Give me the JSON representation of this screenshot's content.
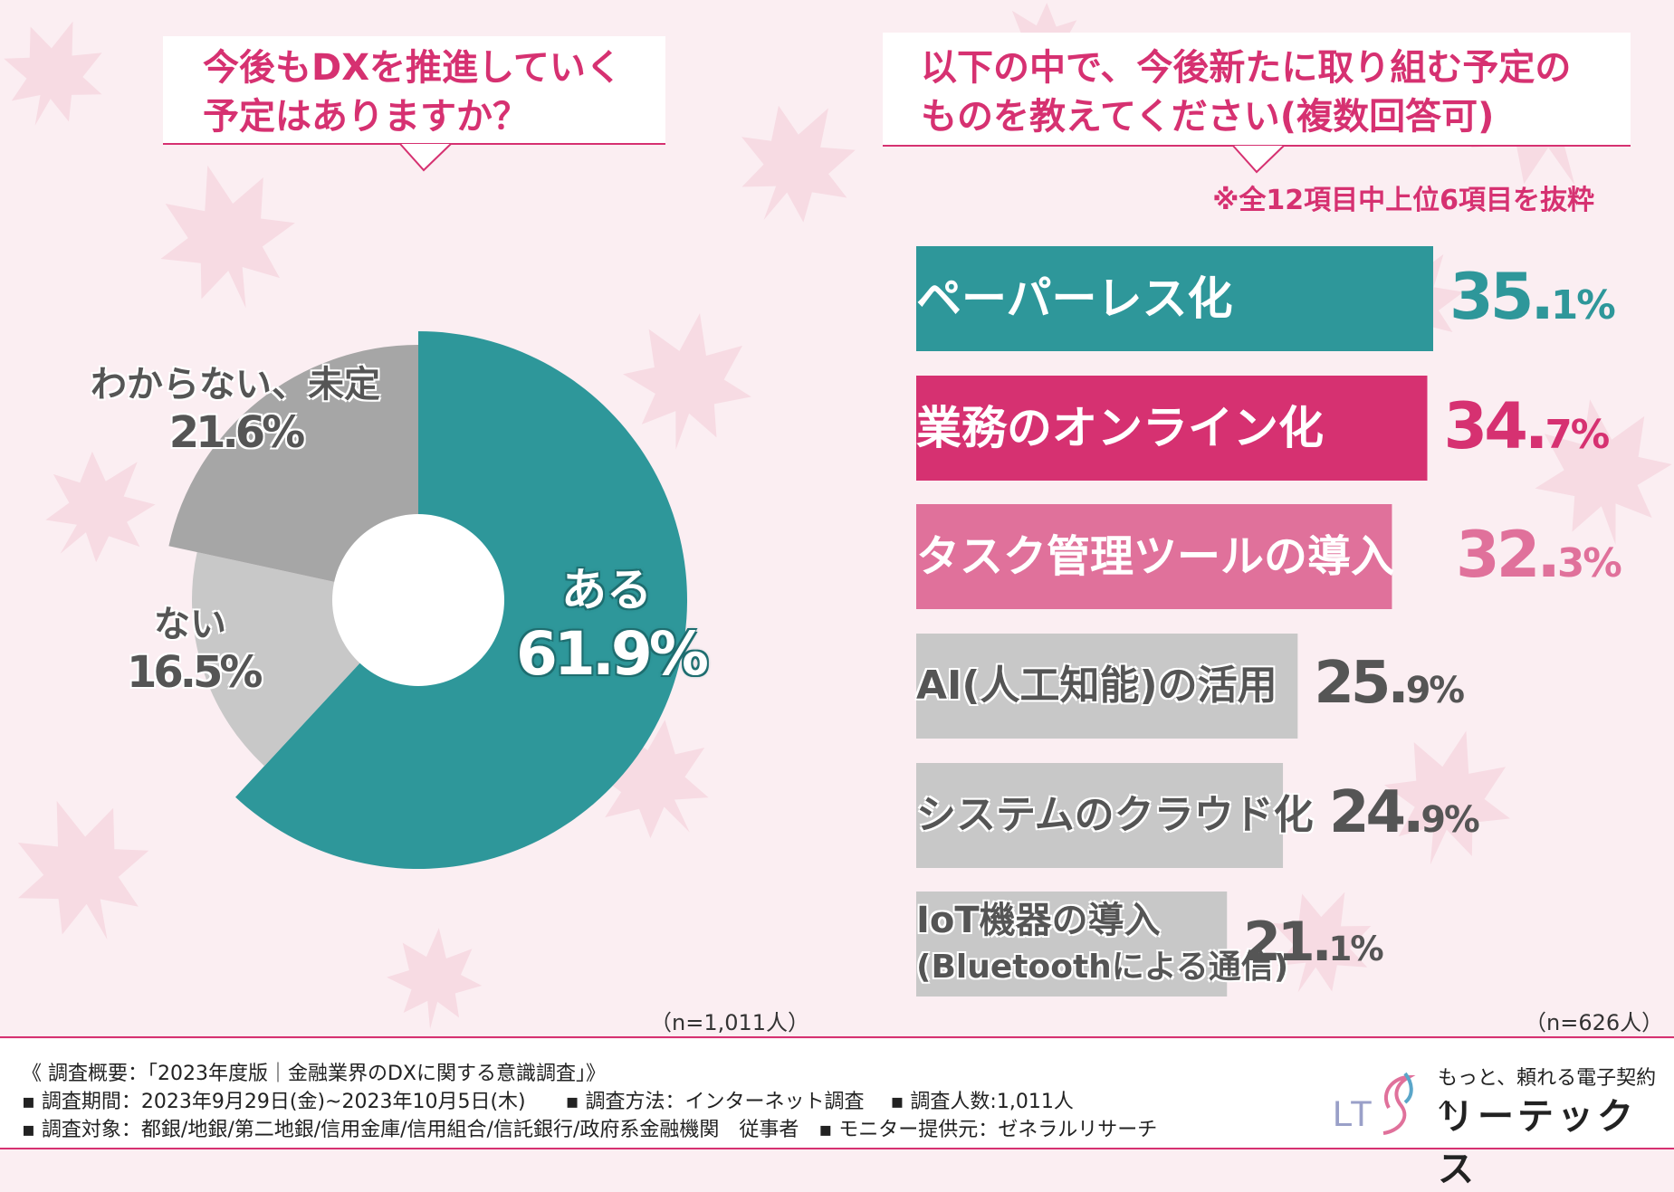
{
  "left_question": {
    "line1": "今後もDXを推進していく",
    "line2": "予定はありますか？",
    "n": "（n=1,011人）"
  },
  "right_question": {
    "line1": "以下の中で、今後新たに取り組む予定の",
    "line2": "ものを教えてください(複数回答可)",
    "note": "※全12項目中上位6項目を抜粋",
    "n": "（n=626人）"
  },
  "chart_data": [
    {
      "type": "pie",
      "categories": [
        "ある",
        "ない",
        "わからない、未定"
      ],
      "values": [
        61.9,
        16.5,
        21.6
      ],
      "labels": [
        "61.9%",
        "16.5%",
        "21.6%"
      ],
      "colors": [
        "#2e979a",
        "#c8c8c8",
        "#a6a6a6"
      ]
    },
    {
      "type": "bar",
      "orientation": "horizontal",
      "categories": [
        "ペーパーレス化",
        "業務のオンライン化",
        "タスク管理ツールの導入",
        "AI(人工知能)の活用",
        "システムのクラウド化",
        "IoT機器の導入(Bluetoothによる通信)"
      ],
      "display_lines": [
        [
          "ペーパーレス化"
        ],
        [
          "業務のオンライン化"
        ],
        [
          "タスク管理ツールの導入"
        ],
        [
          "AI(人工知能)の活用"
        ],
        [
          "システムのクラウド化"
        ],
        [
          "IoT機器の導入",
          "(Bluetoothによる通信)"
        ]
      ],
      "values": [
        35.1,
        34.7,
        32.3,
        25.9,
        24.9,
        21.1
      ],
      "value_int": [
        "35.",
        "34.",
        "32.",
        "25.",
        "24.",
        "21."
      ],
      "value_dec": [
        "1%",
        "7%",
        "3%",
        "9%",
        "9%",
        "1%"
      ],
      "colors": [
        "#2e979a",
        "#d63171",
        "#e0719b",
        "#c8c8c8",
        "#c8c8c8",
        "#c8c8c8"
      ]
    }
  ],
  "footer": {
    "line1": "《 調査概要：「2023年度版｜金融業界のDXに関する意識調査」》",
    "line2": "▪ 調査期間：2023年9月29日(金)~2023年10月5日(木)　　▪ 調査方法：インターネット調査　 ▪ 調査人数:1,011人",
    "line3": "▪ 調査対象：都銀/地銀/第二地銀/信用金庫/信用組合/信託銀行/政府系金融機関　従事者　▪ モニター提供元：ゼネラルリサーチ"
  },
  "brand": {
    "tagline": "もっと、頼れる電子契約へ",
    "name": "リーテックス",
    "logo_text": "LT"
  },
  "colors": {
    "accent_pink": "#d63171",
    "teal": "#2e979a",
    "light_pink": "#e0719b",
    "gray": "#c8c8c8"
  }
}
